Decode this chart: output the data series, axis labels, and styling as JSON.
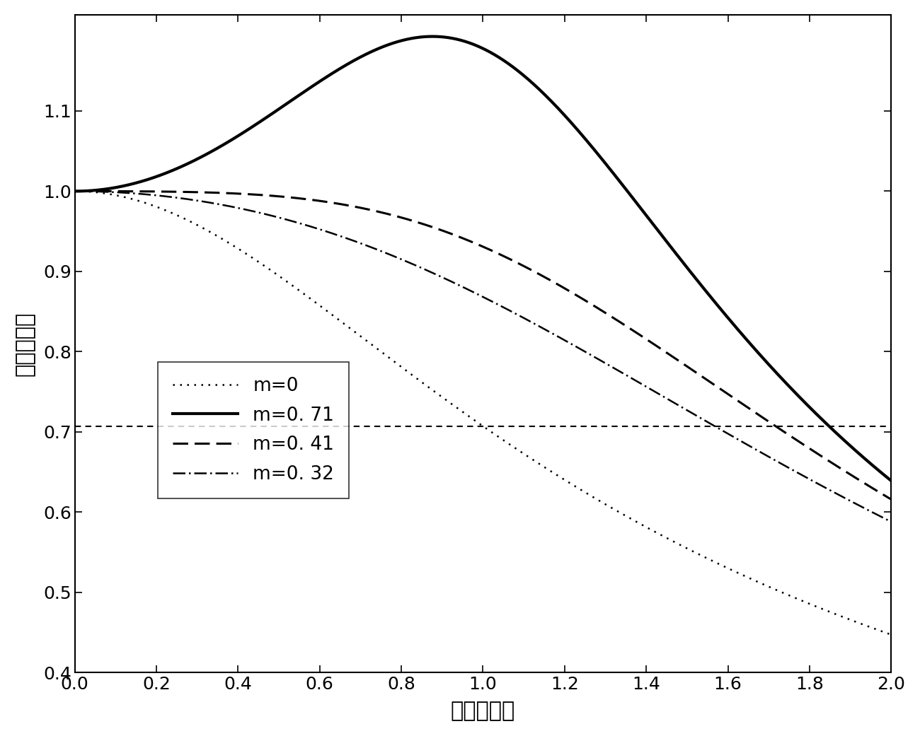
{
  "title": "",
  "xlabel": "归一化频率",
  "ylabel": "归一化增益",
  "xlim": [
    0,
    2.0
  ],
  "ylim": [
    0.4,
    1.22
  ],
  "xticks": [
    0,
    0.2,
    0.4,
    0.6,
    0.8,
    1.0,
    1.2,
    1.4,
    1.6,
    1.8,
    2.0
  ],
  "yticks": [
    0.4,
    0.5,
    0.6,
    0.7,
    0.8,
    0.9,
    1.0,
    1.1
  ],
  "hline_y": 0.707,
  "curves": [
    {
      "m": 0.0,
      "label": "m=0",
      "linestyle": "dotted",
      "linewidth": 1.8
    },
    {
      "m": 0.71,
      "label": "m=0. 71",
      "linestyle": "solid",
      "linewidth": 3.0
    },
    {
      "m": 0.41,
      "label": "m=0. 41",
      "linestyle": "dashed",
      "linewidth": 2.2
    },
    {
      "m": 0.32,
      "label": "m=0. 32",
      "linestyle": "dashdot",
      "linewidth": 1.8
    }
  ],
  "bg_color": "#ffffff",
  "line_color": "#000000",
  "ylabel_rotation": 90,
  "tick_fontsize": 18,
  "label_fontsize": 22,
  "legend_fontsize": 19
}
